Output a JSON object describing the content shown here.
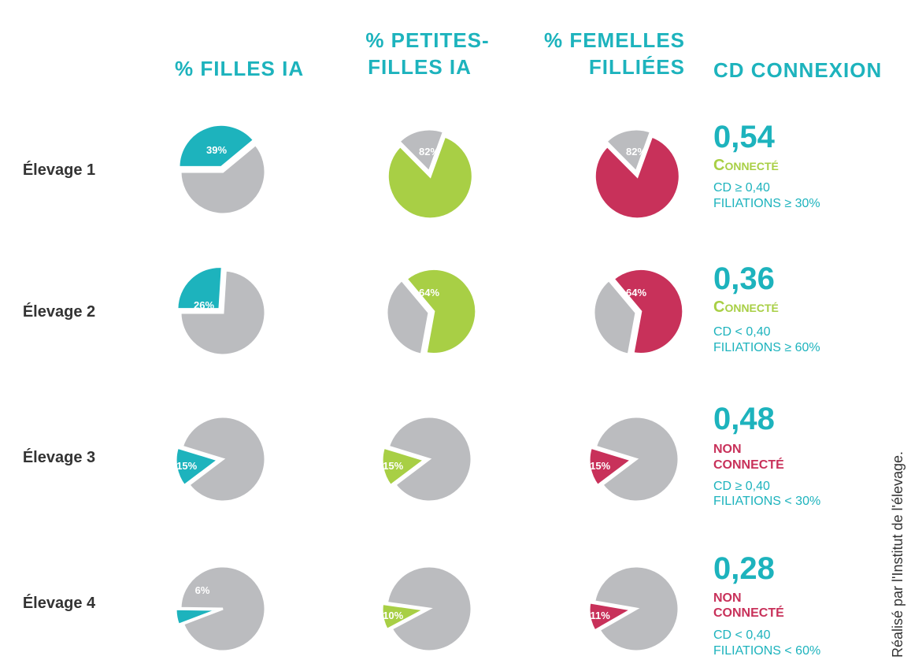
{
  "headers": {
    "filles_ia": "% FILLES IA",
    "petites_filles_line1": "% PETITES-",
    "petites_filles_line2": "FILLES IA",
    "femelles_line1": "% FEMELLES",
    "femelles_line2": "FILLIÉES",
    "cd_connexion": "CD CONNEXION"
  },
  "chart_data": {
    "type": "pie",
    "rows": [
      "Élevage 1",
      "Élevage 2",
      "Élevage 3",
      "Élevage 4"
    ],
    "columns": [
      "% FILLES IA",
      "% PETITES-FILLES IA",
      "% FEMELLES FILLIÉES"
    ],
    "colors": {
      "filles": "#1db3bd",
      "petites": "#a8cf45",
      "femelles": "#c8315a",
      "rest": "#bbbcbf"
    },
    "series": [
      {
        "name": "% FILLES IA",
        "values": [
          39,
          26,
          15,
          6
        ],
        "labels": [
          "39%",
          "26%",
          "15%",
          "6%"
        ]
      },
      {
        "name": "% PETITES-FILLES IA",
        "values": [
          82,
          64,
          15,
          10
        ],
        "labels": [
          "82%",
          "64%",
          "15%",
          "10%"
        ]
      },
      {
        "name": "% FEMELLES FILLIÉES",
        "values": [
          82,
          64,
          15,
          11
        ],
        "labels": [
          "82%",
          "64%",
          "15%",
          "11%"
        ]
      }
    ],
    "cd_values": [
      "0,54",
      "0,36",
      "0,48",
      "0,28"
    ]
  },
  "cd": [
    {
      "value": "0,54",
      "status": "Connecté",
      "status_type": "green",
      "crit1": "CD ≥ 0,40",
      "crit2": "FILIATIONS ≥ 30%"
    },
    {
      "value": "0,36",
      "status": "Connecté",
      "status_type": "green",
      "crit1": "CD < 0,40",
      "crit2": "FILIATIONS ≥ 60%"
    },
    {
      "value": "0,48",
      "status1": "NON",
      "status2": "CONNECTÉ",
      "status_type": "red",
      "crit1": "CD ≥ 0,40",
      "crit2": "FILIATIONS < 30%"
    },
    {
      "value": "0,28",
      "status1": "NON",
      "status2": "CONNECTÉ",
      "status_type": "red",
      "crit1": "CD < 0,40",
      "crit2": "FILIATIONS < 60%"
    }
  ],
  "credit": "Réalisé par l'Institut de l'élevage."
}
